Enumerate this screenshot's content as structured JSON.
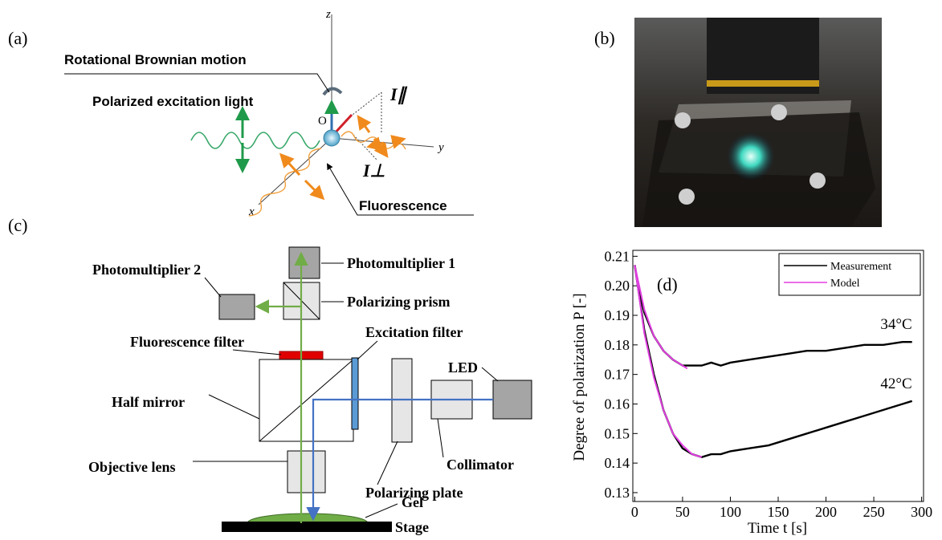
{
  "panel_a": {
    "label": "(a)",
    "rotation": "Rotational Brownian motion",
    "excitation": "Polarized excitation light",
    "origin": "O",
    "axis_z": "z",
    "axis_y": "y",
    "axis_x": "x",
    "i_parallel": "I∥",
    "i_perp": "I⊥",
    "fluorescence": "Fluorescence"
  },
  "panel_b": {
    "label": "(b)"
  },
  "panel_c": {
    "label": "(c)",
    "pm1": "Photomultiplier 1",
    "pm2": "Photomultiplier 2",
    "prism": "Polarizing prism",
    "fluor_filter": "Fluorescence filter",
    "exc_filter": "Excitation filter",
    "led": "LED",
    "half_mirror": "Half mirror",
    "collimator": "Collimator",
    "objective": "Objective lens",
    "pol_plate": "Polarizing plate",
    "gel": "Gel",
    "stage": "Stage"
  },
  "chart_data": {
    "type": "line",
    "panel_label": "(d)",
    "x_label": "Time t [s]",
    "y_label": "Degree of polarization P [-]",
    "xlim": [
      -2,
      302
    ],
    "ylim": [
      0.127,
      0.212
    ],
    "xticks": [
      0,
      50,
      100,
      150,
      200,
      250,
      300
    ],
    "yticks": [
      0.13,
      0.14,
      0.15,
      0.16,
      0.17,
      0.18,
      0.19,
      {
        "value": 0.2,
        "label": "0.20"
      },
      0.21
    ],
    "legend": "upper right",
    "series": [
      {
        "name": "Measurement",
        "color": "#000000",
        "curves": [
          {
            "label": "34°C",
            "x": [
              0,
              5,
              10,
              20,
              30,
              40,
              50,
              60,
              70,
              80,
              90,
              100,
              120,
              140,
              160,
              180,
              200,
              220,
              240,
              260,
              280,
              290
            ],
            "values": [
              0.207,
              0.198,
              0.191,
              0.183,
              0.178,
              0.175,
              0.173,
              0.173,
              0.173,
              0.174,
              0.173,
              0.174,
              0.175,
              0.176,
              0.177,
              0.178,
              0.178,
              0.179,
              0.18,
              0.18,
              0.181,
              0.181
            ]
          },
          {
            "label": "42°C",
            "x": [
              0,
              10,
              20,
              30,
              40,
              50,
              60,
              70,
              80,
              90,
              100,
              120,
              140,
              160,
              180,
              200,
              220,
              240,
              260,
              280,
              290
            ],
            "values": [
              0.207,
              0.185,
              0.17,
              0.158,
              0.15,
              0.145,
              0.143,
              0.142,
              0.143,
              0.143,
              0.144,
              0.145,
              0.146,
              0.148,
              0.15,
              0.152,
              0.154,
              0.156,
              0.158,
              0.16,
              0.161
            ]
          }
        ]
      },
      {
        "name": "Model",
        "color": "#e23fe2",
        "curves": [
          {
            "x": [
              0,
              10,
              20,
              30,
              40,
              50,
              55
            ],
            "values": [
              0.207,
              0.192,
              0.183,
              0.178,
              0.175,
              0.173,
              0.172
            ]
          },
          {
            "x": [
              0,
              10,
              20,
              30,
              40,
              50,
              60,
              70
            ],
            "values": [
              0.207,
              0.184,
              0.169,
              0.158,
              0.15,
              0.146,
              0.143,
              0.142
            ]
          }
        ]
      }
    ]
  }
}
